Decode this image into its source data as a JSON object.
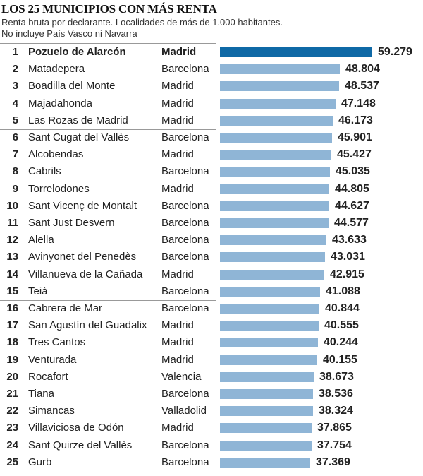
{
  "chart_data": {
    "type": "bar",
    "orientation": "horizontal",
    "title": "LOS 25 MUNICIPIOS CON MÁS RENTA",
    "subtitle": [
      "Renta bruta por declarante. Localidades de más de 1.000 habitantes.",
      "No incluye País Vasco ni Navarra"
    ],
    "colors": {
      "highlight": "#0f69a6",
      "default": "#8fb5d6"
    },
    "rows": [
      {
        "rank": "1",
        "name": "Pozuelo de Alarcón",
        "province": "Madrid",
        "value": 59279,
        "label": "59.279"
      },
      {
        "rank": "2",
        "name": "Matadepera",
        "province": "Barcelona",
        "value": 48804,
        "label": "48.804"
      },
      {
        "rank": "3",
        "name": "Boadilla del Monte",
        "province": "Madrid",
        "value": 48537,
        "label": "48.537"
      },
      {
        "rank": "4",
        "name": "Majadahonda",
        "province": "Madrid",
        "value": 47148,
        "label": "47.148"
      },
      {
        "rank": "5",
        "name": "Las Rozas de Madrid",
        "province": "Madrid",
        "value": 46173,
        "label": "46.173"
      },
      {
        "rank": "6",
        "name": "Sant Cugat del Vallès",
        "province": "Barcelona",
        "value": 45901,
        "label": "45.901"
      },
      {
        "rank": "7",
        "name": "Alcobendas",
        "province": "Madrid",
        "value": 45427,
        "label": "45.427"
      },
      {
        "rank": "8",
        "name": "Cabrils",
        "province": "Barcelona",
        "value": 45035,
        "label": "45.035"
      },
      {
        "rank": "9",
        "name": "Torrelodones",
        "province": "Madrid",
        "value": 44805,
        "label": "44.805"
      },
      {
        "rank": "10",
        "name": "Sant Vicenç de Montalt",
        "province": "Barcelona",
        "value": 44627,
        "label": "44.627"
      },
      {
        "rank": "11",
        "name": "Sant Just Desvern",
        "province": "Barcelona",
        "value": 44577,
        "label": "44.577"
      },
      {
        "rank": "12",
        "name": "Alella",
        "province": "Barcelona",
        "value": 43633,
        "label": "43.633"
      },
      {
        "rank": "13",
        "name": "Avinyonet del Penedès",
        "province": "Barcelona",
        "value": 43031,
        "label": "43.031"
      },
      {
        "rank": "14",
        "name": "Villanueva de la Cañada",
        "province": "Madrid",
        "value": 42915,
        "label": "42.915"
      },
      {
        "rank": "15",
        "name": "Teià",
        "province": "Barcelona",
        "value": 41088,
        "label": "41.088"
      },
      {
        "rank": "16",
        "name": "Cabrera de Mar",
        "province": "Barcelona",
        "value": 40844,
        "label": "40.844"
      },
      {
        "rank": "17",
        "name": "San Agustín del Guadalix",
        "province": "Madrid",
        "value": 40555,
        "label": "40.555"
      },
      {
        "rank": "18",
        "name": "Tres Cantos",
        "province": "Madrid",
        "value": 40244,
        "label": "40.244"
      },
      {
        "rank": "19",
        "name": "Venturada",
        "province": "Madrid",
        "value": 40155,
        "label": "40.155"
      },
      {
        "rank": "20",
        "name": "Rocafort",
        "province": "Valencia",
        "value": 38673,
        "label": "38.673"
      },
      {
        "rank": "21",
        "name": "Tiana",
        "province": "Barcelona",
        "value": 38536,
        "label": "38.536"
      },
      {
        "rank": "22",
        "name": "Simancas",
        "province": "Valladolid",
        "value": 38324,
        "label": "38.324"
      },
      {
        "rank": "23",
        "name": "Villaviciosa de Odón",
        "province": "Madrid",
        "value": 37865,
        "label": "37.865"
      },
      {
        "rank": "24",
        "name": "Sant Quirze del Vallès",
        "province": "Barcelona",
        "value": 37754,
        "label": "37.754"
      },
      {
        "rank": "25",
        "name": "Gurb",
        "province": "Barcelona",
        "value": 37369,
        "label": "37.369"
      }
    ]
  }
}
